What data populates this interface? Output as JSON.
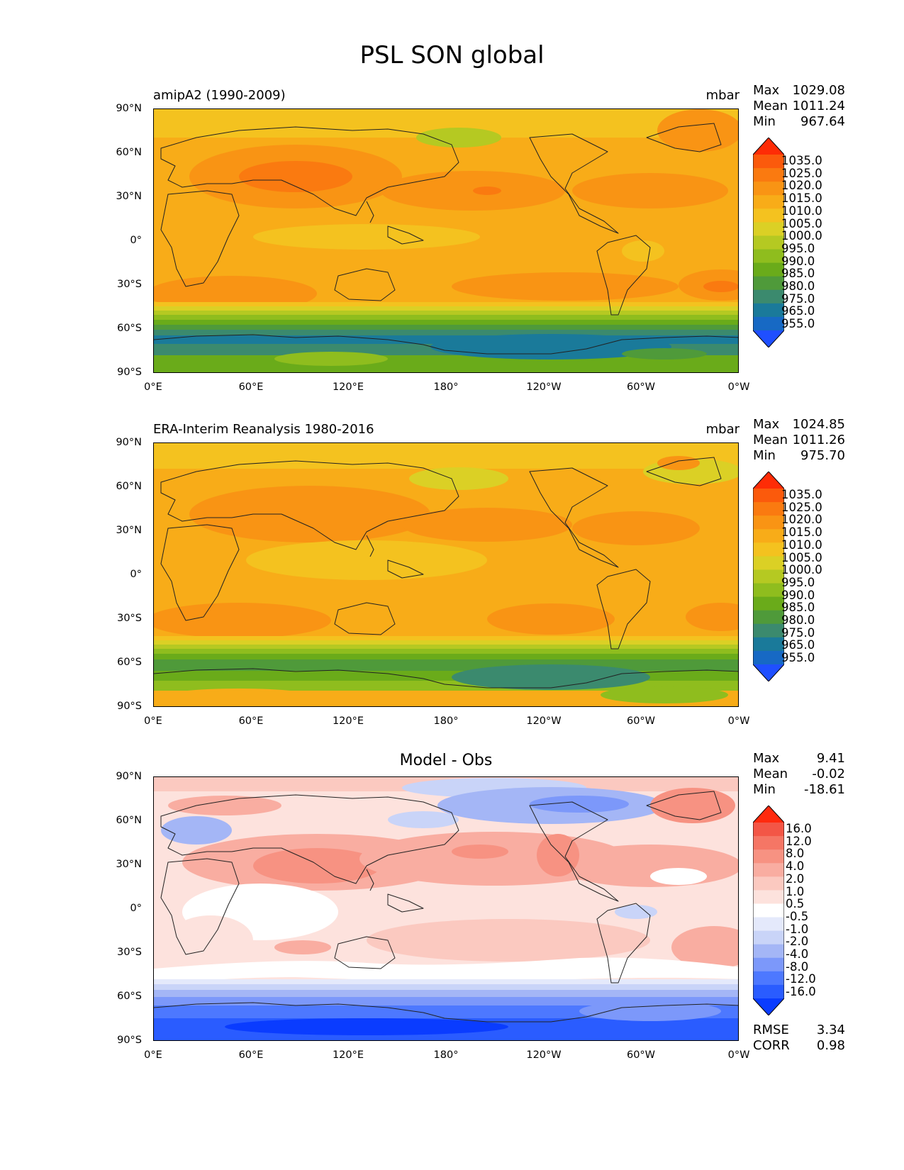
{
  "title": "PSL SON global",
  "lat_ticks": [
    "90°N",
    "60°N",
    "30°N",
    "0°",
    "30°S",
    "60°S",
    "90°S"
  ],
  "lon_ticks": [
    "0°E",
    "60°E",
    "120°E",
    "180°",
    "120°W",
    "60°W",
    "0°W"
  ],
  "colors": {
    "abs_levels": [
      "#1f4fff",
      "#1769c4",
      "#1a7a9a",
      "#3b8a6e",
      "#4f9a3a",
      "#6aab1a",
      "#8fbd1e",
      "#b5c922",
      "#dbd025",
      "#f4c21f",
      "#f8ac18",
      "#f99414",
      "#fa7a10",
      "#fb5a0c",
      "#fe2c06"
    ],
    "diff_levels": [
      "#0a3cff",
      "#2a5cff",
      "#4d78ff",
      "#7c98fa",
      "#a4b6f6",
      "#c9d4f8",
      "#e4e9fb",
      "#ffffff",
      "#fde2dd",
      "#fbc9c0",
      "#f9ada1",
      "#f79282",
      "#f57665",
      "#f35646",
      "#ff2a0e"
    ]
  },
  "panels": [
    {
      "id": "model",
      "left_title": "amipA2 (1990-2009)",
      "center_title": "",
      "units": "mbar",
      "stats": [
        {
          "label": "Max",
          "value": "1029.08"
        },
        {
          "label": "Mean",
          "value": "1011.24"
        },
        {
          "label": "Min",
          "value": "967.64"
        }
      ],
      "colorbar_labels": [
        "1035.0",
        "1025.0",
        "1020.0",
        "1015.0",
        "1010.0",
        "1005.0",
        "1000.0",
        "995.0",
        "990.0",
        "985.0",
        "980.0",
        "975.0",
        "965.0",
        "955.0"
      ],
      "error_stats": []
    },
    {
      "id": "obs",
      "left_title": "ERA-Interim Reanalysis 1980-2016",
      "center_title": "",
      "units": "mbar",
      "stats": [
        {
          "label": "Max",
          "value": "1024.85"
        },
        {
          "label": "Mean",
          "value": "1011.26"
        },
        {
          "label": "Min",
          "value": "975.70"
        }
      ],
      "colorbar_labels": [
        "1035.0",
        "1025.0",
        "1020.0",
        "1015.0",
        "1010.0",
        "1005.0",
        "1000.0",
        "995.0",
        "990.0",
        "985.0",
        "980.0",
        "975.0",
        "965.0",
        "955.0"
      ],
      "error_stats": []
    },
    {
      "id": "diff",
      "left_title": "",
      "center_title": "Model - Obs",
      "units": "",
      "stats": [
        {
          "label": "Max",
          "value": "9.41"
        },
        {
          "label": "Mean",
          "value": "-0.02"
        },
        {
          "label": "Min",
          "value": "-18.61"
        }
      ],
      "colorbar_labels": [
        "16.0",
        "12.0",
        "8.0",
        "4.0",
        "2.0",
        "1.0",
        "0.5",
        "-0.5",
        "-1.0",
        "-2.0",
        "-4.0",
        "-8.0",
        "-12.0",
        "-16.0"
      ],
      "error_stats": [
        {
          "label": "RMSE",
          "value": "3.34"
        },
        {
          "label": "CORR",
          "value": "0.98"
        }
      ]
    }
  ]
}
